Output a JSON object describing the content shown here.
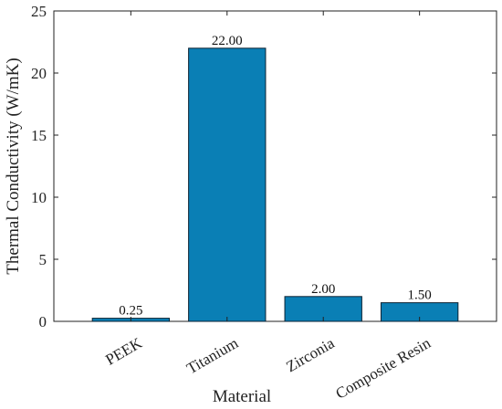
{
  "chart_data": {
    "type": "bar",
    "categories": [
      "PEEK",
      "Titanium",
      "Zirconia",
      "Composite Resin"
    ],
    "values": [
      0.25,
      22.0,
      2.0,
      1.5
    ],
    "data_labels": [
      "0.25",
      "22.00",
      "2.00",
      "1.50"
    ],
    "title": "",
    "xlabel": "Material",
    "ylabel": "Thermal Conductivity (W/mK)",
    "ylim": [
      0,
      25
    ],
    "yticks": [
      0,
      5,
      10,
      15,
      20,
      25
    ],
    "xlim": [
      0.2,
      4.8
    ],
    "grid": false,
    "legend": "none",
    "colors": {
      "bar": "#0a7fb5",
      "bar_edge": "#0b2233",
      "axis": "#222222"
    }
  }
}
